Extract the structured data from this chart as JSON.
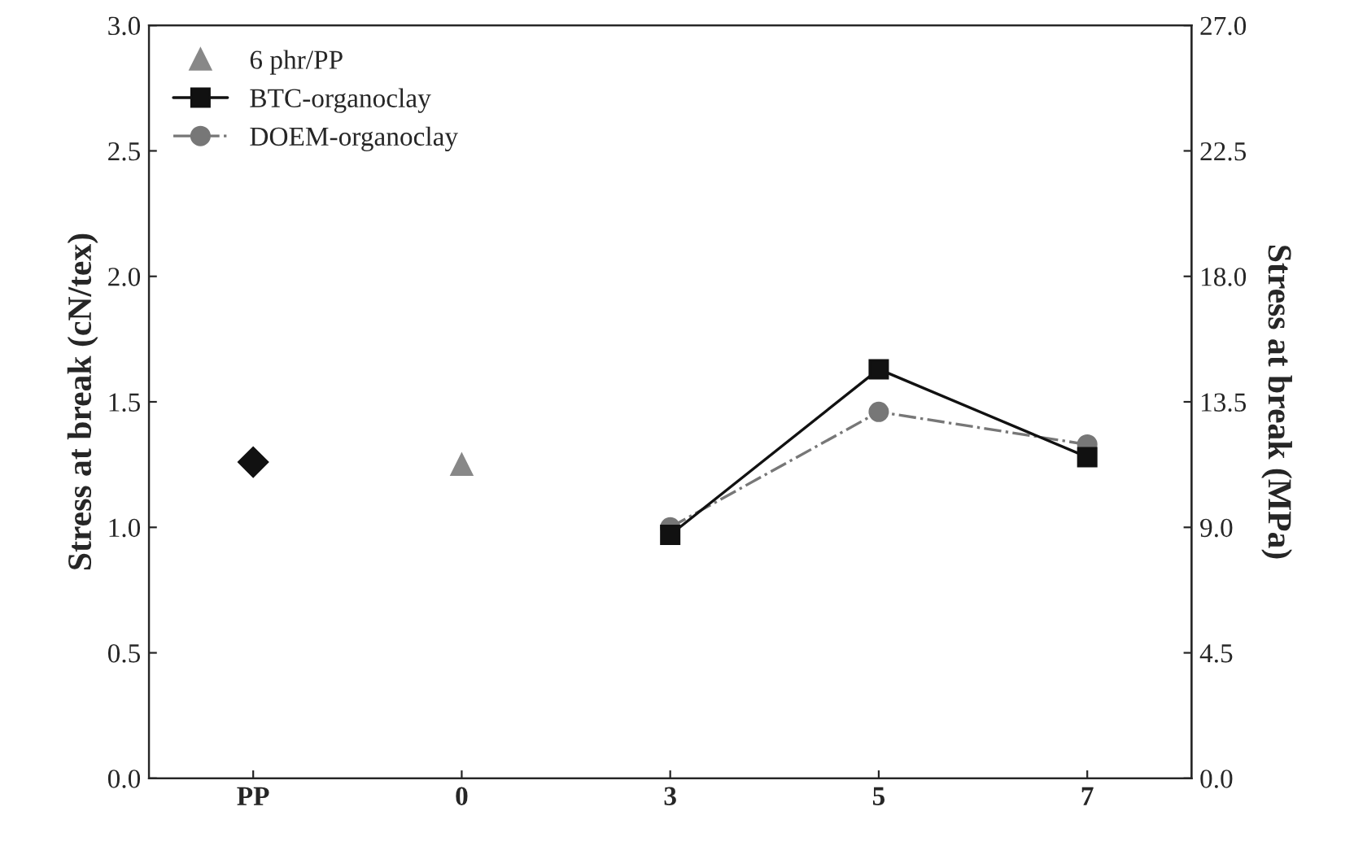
{
  "chart_data": {
    "type": "scatter",
    "categories": [
      "PP",
      "0",
      "3",
      "5",
      "7"
    ],
    "ylabel": "Stress at break (cN/tex)",
    "y2label": "Stress at break (MPa)",
    "ylim": [
      0,
      3
    ],
    "yticks": [
      {
        "value": 0,
        "label": "0.0"
      },
      {
        "value": 0.5,
        "label": "0.5"
      },
      {
        "value": 1,
        "label": "1.0"
      },
      {
        "value": 1.5,
        "label": "1.5"
      },
      {
        "value": 2,
        "label": "2.0"
      },
      {
        "value": 2.5,
        "label": "2.5"
      },
      {
        "value": 3,
        "label": "3.0"
      }
    ],
    "y2lim": [
      0,
      27
    ],
    "y2ticks": [
      {
        "value": 0,
        "label": "0.0"
      },
      {
        "value": 4.5,
        "label": "4.5"
      },
      {
        "value": 9,
        "label": "9.0"
      },
      {
        "value": 13.5,
        "label": "13.5"
      },
      {
        "value": 18,
        "label": "18.0"
      },
      {
        "value": 22.5,
        "label": "22.5"
      },
      {
        "value": 27,
        "label": "27.0"
      }
    ],
    "series": [
      {
        "color": "#111111",
        "marker": "diamond",
        "values": [
          1.26,
          null,
          null,
          null,
          null
        ]
      },
      {
        "name": "6 phr/PP",
        "color": "#888888",
        "marker": "triangle",
        "values": [
          null,
          1.25,
          null,
          null,
          null
        ]
      },
      {
        "type": "line",
        "name": "BTC-organoclay",
        "color": "#111111",
        "marker": "square",
        "line_style": "solid",
        "values": [
          null,
          null,
          0.97,
          1.63,
          1.28
        ]
      },
      {
        "type": "line",
        "name": "DOEM-organoclay",
        "color": "#777777",
        "marker": "circle",
        "line_style": "dashdot",
        "values": [
          null,
          null,
          1.0,
          1.46,
          1.33
        ]
      }
    ],
    "legend": "top left",
    "grid": false
  }
}
